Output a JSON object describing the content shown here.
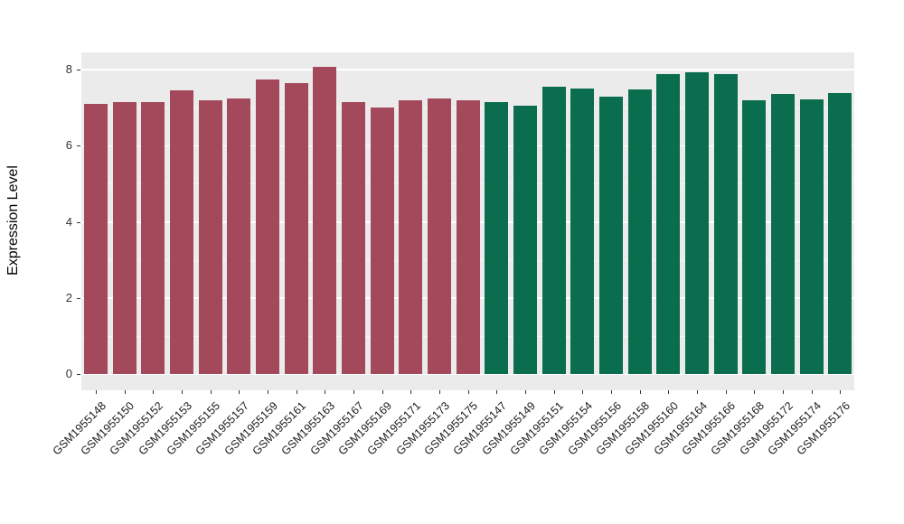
{
  "chart_data": {
    "type": "bar",
    "title": "",
    "xlabel": "",
    "ylabel": "Expression Level",
    "ylim": [
      0,
      8.45
    ],
    "yticks": [
      0,
      2,
      4,
      6,
      8
    ],
    "yticks_minor": [
      1,
      3,
      5,
      7
    ],
    "grid": "on",
    "legend": "none",
    "panel_bg": "#EBEBEB",
    "grid_color": "#FFFFFF",
    "group_colors": {
      "groupA": "#A3495B",
      "groupB": "#0A6D4D"
    },
    "bars": [
      {
        "label": "GSM1955148",
        "value": 7.1,
        "group": "groupA"
      },
      {
        "label": "GSM1955150",
        "value": 7.15,
        "group": "groupA"
      },
      {
        "label": "GSM1955152",
        "value": 7.15,
        "group": "groupA"
      },
      {
        "label": "GSM1955153",
        "value": 7.45,
        "group": "groupA"
      },
      {
        "label": "GSM1955155",
        "value": 7.2,
        "group": "groupA"
      },
      {
        "label": "GSM1955157",
        "value": 7.25,
        "group": "groupA"
      },
      {
        "label": "GSM1955159",
        "value": 7.75,
        "group": "groupA"
      },
      {
        "label": "GSM1955161",
        "value": 7.65,
        "group": "groupA"
      },
      {
        "label": "GSM1955163",
        "value": 8.07,
        "group": "groupA"
      },
      {
        "label": "GSM1955167",
        "value": 7.15,
        "group": "groupA"
      },
      {
        "label": "GSM1955169",
        "value": 7.0,
        "group": "groupA"
      },
      {
        "label": "GSM1955171",
        "value": 7.2,
        "group": "groupA"
      },
      {
        "label": "GSM1955173",
        "value": 7.25,
        "group": "groupA"
      },
      {
        "label": "GSM1955175",
        "value": 7.2,
        "group": "groupA"
      },
      {
        "label": "GSM1955147",
        "value": 7.15,
        "group": "groupB"
      },
      {
        "label": "GSM1955149",
        "value": 7.05,
        "group": "groupB"
      },
      {
        "label": "GSM1955151",
        "value": 7.55,
        "group": "groupB"
      },
      {
        "label": "GSM1955154",
        "value": 7.5,
        "group": "groupB"
      },
      {
        "label": "GSM1955156",
        "value": 7.3,
        "group": "groupB"
      },
      {
        "label": "GSM1955158",
        "value": 7.48,
        "group": "groupB"
      },
      {
        "label": "GSM1955160",
        "value": 7.87,
        "group": "groupB"
      },
      {
        "label": "GSM1955164",
        "value": 7.93,
        "group": "groupB"
      },
      {
        "label": "GSM1955166",
        "value": 7.87,
        "group": "groupB"
      },
      {
        "label": "GSM1955168",
        "value": 7.2,
        "group": "groupB"
      },
      {
        "label": "GSM1955172",
        "value": 7.35,
        "group": "groupB"
      },
      {
        "label": "GSM1955174",
        "value": 7.22,
        "group": "groupB"
      },
      {
        "label": "GSM1955176",
        "value": 7.38,
        "group": "groupB"
      }
    ]
  }
}
